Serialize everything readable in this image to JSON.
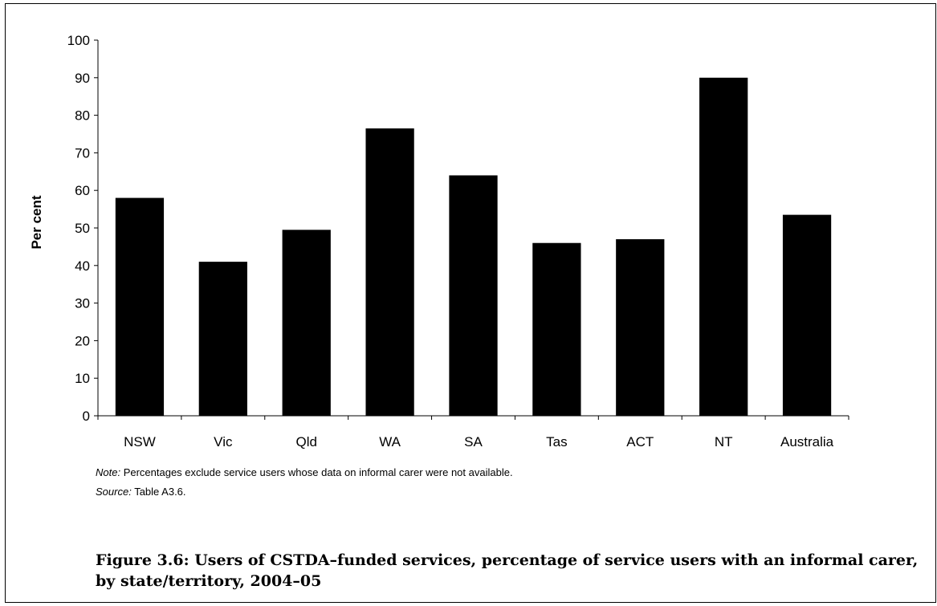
{
  "chart_data": {
    "type": "bar",
    "categories": [
      "NSW",
      "Vic",
      "Qld",
      "WA",
      "SA",
      "Tas",
      "ACT",
      "NT",
      "Australia"
    ],
    "values": [
      58,
      41,
      49.5,
      76.5,
      64,
      46,
      47,
      90,
      53.5
    ],
    "ylabel": "Per cent",
    "xlabel": "",
    "ylim": [
      0,
      100
    ],
    "yticks": [
      0,
      10,
      20,
      30,
      40,
      50,
      60,
      70,
      80,
      90,
      100
    ],
    "grid": false,
    "bar_color": "#000000"
  },
  "notes": {
    "note_prefix": "Note:",
    "note_text": " Percentages exclude service users whose data on informal carer were not available.",
    "source_prefix": "Source:",
    "source_text": " Table A3.6."
  },
  "caption": "Figure 3.6: Users of CSTDA–funded services, percentage of service users with an informal carer, by state/territory, 2004–05"
}
